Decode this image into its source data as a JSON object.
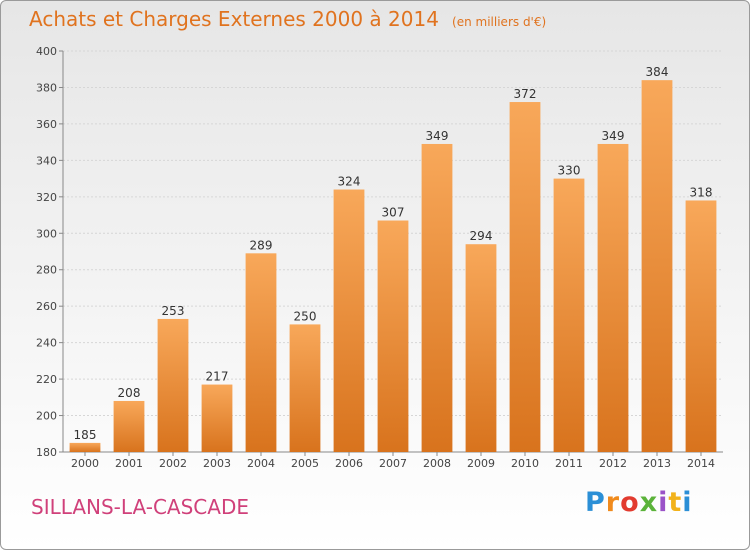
{
  "header": {
    "title": "Achats et Charges Externes 2000 à 2014",
    "unit": "(en milliers d'€)"
  },
  "footer": {
    "commune": "SILLANS-LA-CASCADE",
    "logo_text": "Proxiti"
  },
  "colors": {
    "accent": "#e0731f",
    "commune": "#d0407a",
    "bar_top": "#f8a85a",
    "bar_bottom": "#d8731d"
  },
  "chart_data": {
    "type": "bar",
    "title": "Achats et Charges Externes 2000 à 2014",
    "subtitle": "(en milliers d'€)",
    "xlabel": "",
    "ylabel": "",
    "categories": [
      "2000",
      "2001",
      "2002",
      "2003",
      "2004",
      "2005",
      "2006",
      "2007",
      "2008",
      "2009",
      "2010",
      "2011",
      "2012",
      "2013",
      "2014"
    ],
    "values": [
      185,
      208,
      253,
      217,
      289,
      250,
      324,
      307,
      349,
      294,
      372,
      330,
      349,
      384,
      318
    ],
    "data_labels": [
      "185",
      "208",
      "253",
      "217",
      "289",
      "250",
      "324",
      "307",
      "349",
      "294",
      "372",
      "330",
      "349",
      "384",
      "318"
    ],
    "ylim": [
      180,
      400
    ],
    "yticks": [
      "180",
      "200",
      "220",
      "240",
      "260",
      "280",
      "300",
      "320",
      "340",
      "360",
      "380",
      "400"
    ],
    "grid": true,
    "legend": "none"
  }
}
